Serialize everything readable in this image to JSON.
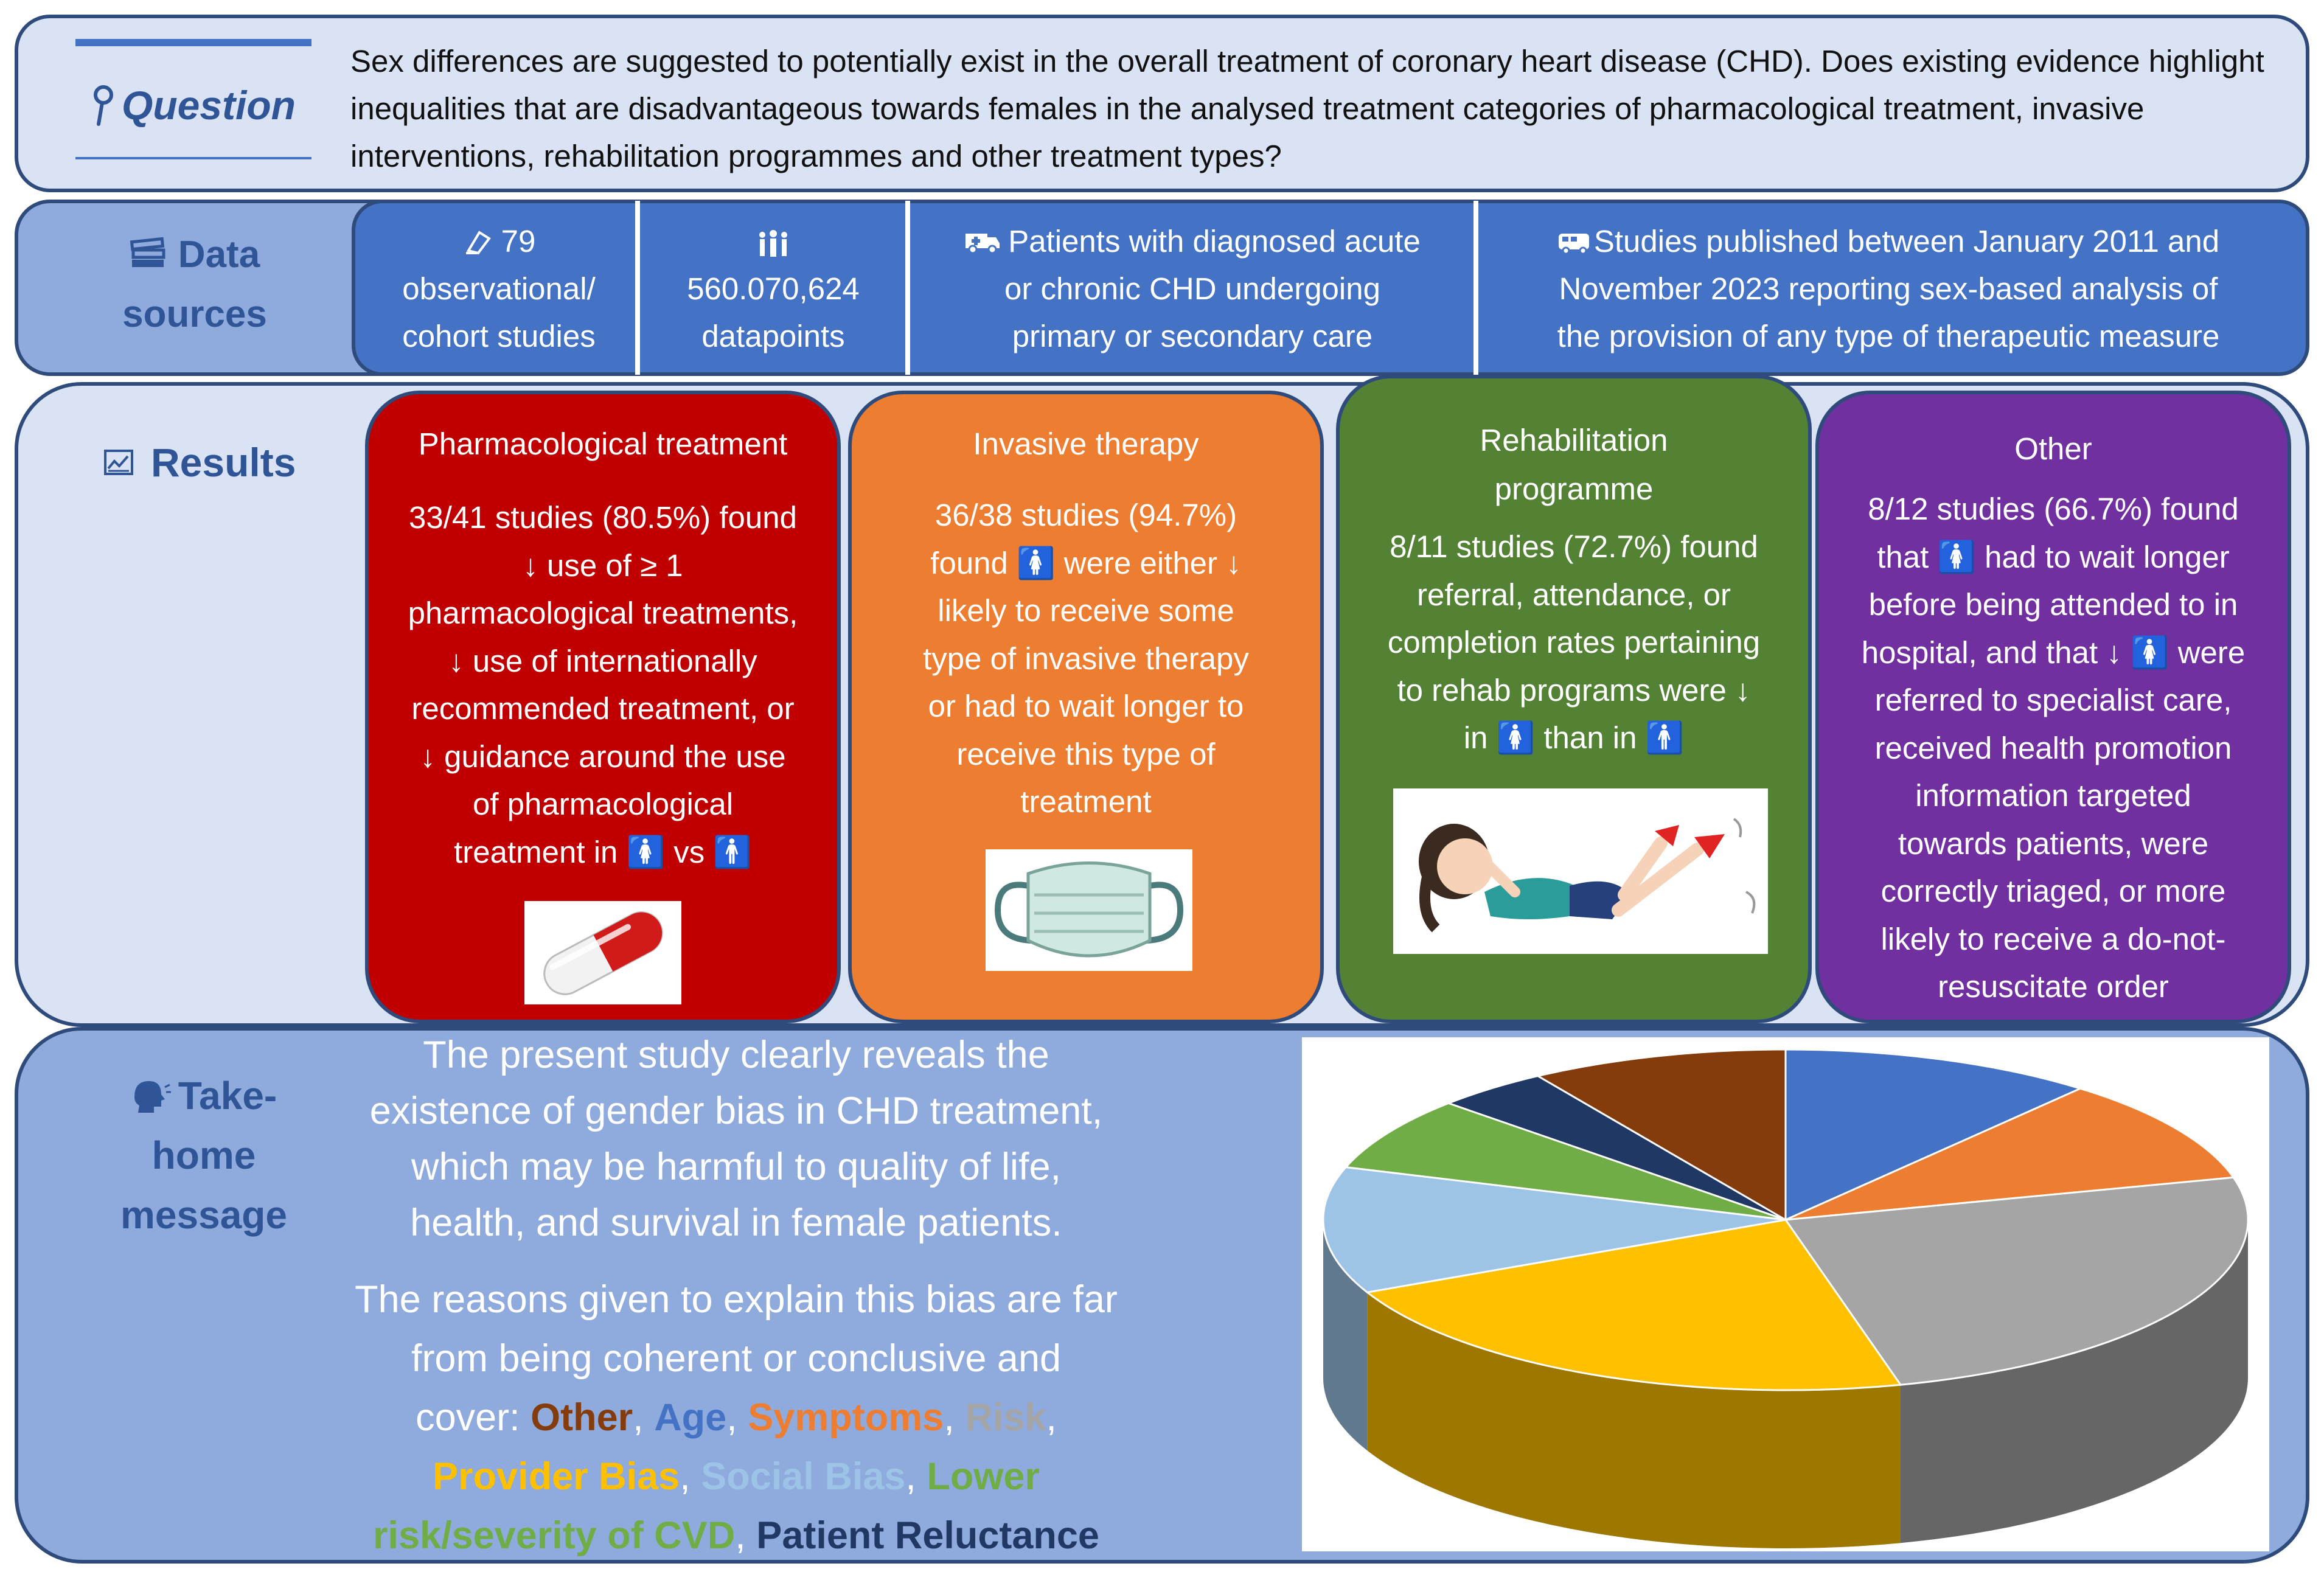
{
  "question": {
    "label": "Question",
    "text": "Sex differences are suggested to potentially exist in the overall treatment of coronary heart disease (CHD). Does existing evidence highlight inequalities that are disadvantageous towards females in the analysed treatment categories of pharmacological treatment, invasive interventions, rehabilitation programmes and other treatment types?"
  },
  "data_sources": {
    "label_line1": "Data",
    "label_line2": "sources",
    "items": [
      {
        "line1": "79",
        "line2": "observational/",
        "line3": "cohort studies"
      },
      {
        "line1": "",
        "line2": "560.070,624",
        "line3": "datapoints"
      },
      {
        "line1": "Patients with diagnosed acute",
        "line2": "or chronic CHD undergoing",
        "line3": "primary or secondary care"
      },
      {
        "line1": "Studies published between January 2011 and",
        "line2": "November 2023 reporting sex-based analysis of",
        "line3": "the provision of any type of therapeutic measure"
      }
    ]
  },
  "results": {
    "label": "Results",
    "cards": [
      {
        "title": "Pharmacological treatment",
        "lines": [
          "33/41 studies (80.5%) found",
          "↓ use of ≥ 1",
          "pharmacological treatments,",
          "↓ use of internationally",
          "recommended treatment, or",
          "↓ guidance around the use",
          "of pharmacological",
          "treatment in 🚺 vs 🚹"
        ],
        "image": "pill-capsule"
      },
      {
        "title": "Invasive therapy",
        "lines": [
          "36/38 studies (94.7%)",
          "found 🚺 were either ↓",
          "likely to receive some",
          "type of invasive therapy",
          "or had to wait longer to",
          "receive this type of",
          "treatment"
        ],
        "image": "surgical-mask"
      },
      {
        "title_line1": "Rehabilitation",
        "title_line2": "programme",
        "lines": [
          "8/11 studies (72.7%) found",
          "referral, attendance, or",
          "completion rates pertaining",
          "to rehab programs were ↓",
          "in 🚺 than in 🚹"
        ],
        "image": "exercising-girl"
      },
      {
        "title": "Other",
        "lines": [
          "8/12 studies (66.7%) found",
          "that 🚺 had to wait longer",
          "before being attended to in",
          "hospital, and that ↓ 🚺 were",
          "referred to specialist care,",
          "received health promotion",
          "information targeted",
          "towards patients, were",
          "correctly triaged, or more",
          "likely to receive a do-not-",
          "resuscitate order"
        ]
      }
    ]
  },
  "take_home": {
    "label_line1": "Take-",
    "label_line2": "home",
    "label_line3": "message",
    "p1_lines": [
      "The present study clearly reveals the",
      "existence of gender bias in CHD treatment,",
      "which may be harmful to quality of life,",
      "health, and survival in female patients."
    ],
    "p2_line1": "The reasons given to explain this bias are far",
    "p2_line2": "from being coherent or conclusive and",
    "cover": "cover: ",
    "comma": ", ",
    "reasons": [
      "Other",
      "Age",
      "Symptoms",
      "Risk",
      "Provider Bias",
      "Social Bias",
      "Lower risk/severity of CVD",
      "Patient Reluctance"
    ]
  },
  "colors": {
    "Other": "#843c0c",
    "Age": "#4472c4",
    "Symptoms": "#ed7d31",
    "Risk": "#a5a5a5",
    "Provider Bias": "#ffc000",
    "Social Bias": "#9dc3e6",
    "Lower risk/severity of CVD": "#70ad47",
    "Patient Reluctance": "#203864",
    "card_pharma": "#c00000",
    "card_invasive": "#ed7d31",
    "card_rehab": "#548235",
    "card_other": "#7030a0"
  },
  "chart_data": {
    "type": "pie",
    "title": "",
    "categories": [
      "Age",
      "Symptoms",
      "Risk",
      "Provider Bias",
      "Social Bias",
      "Lower risk/severity of CVD",
      "Patient Reluctance",
      "Other"
    ],
    "values": [
      11,
      10,
      25,
      22,
      12,
      7,
      4,
      9
    ]
  }
}
